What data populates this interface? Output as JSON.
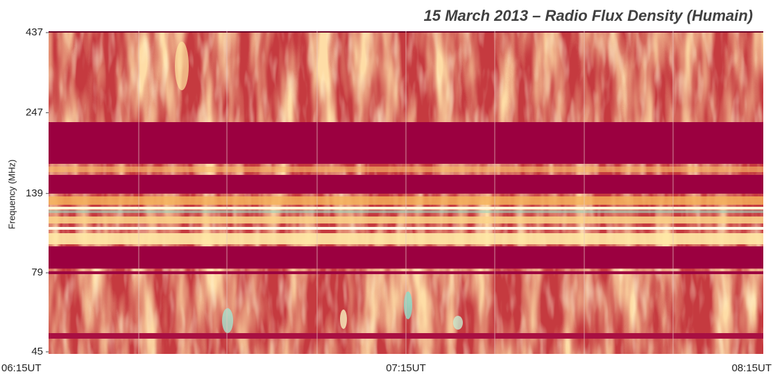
{
  "chart_data": {
    "type": "spectrogram",
    "title": "15 March 2013 – Radio Flux Density (Humain)",
    "ylabel": "Frequency (MHz)",
    "ylim": [
      45,
      437
    ],
    "log_y": true,
    "yticks": [
      45,
      79,
      139,
      247,
      437
    ],
    "xticks": [
      "06:15UT",
      "07:15UT",
      "08:15UT"
    ]
  }
}
